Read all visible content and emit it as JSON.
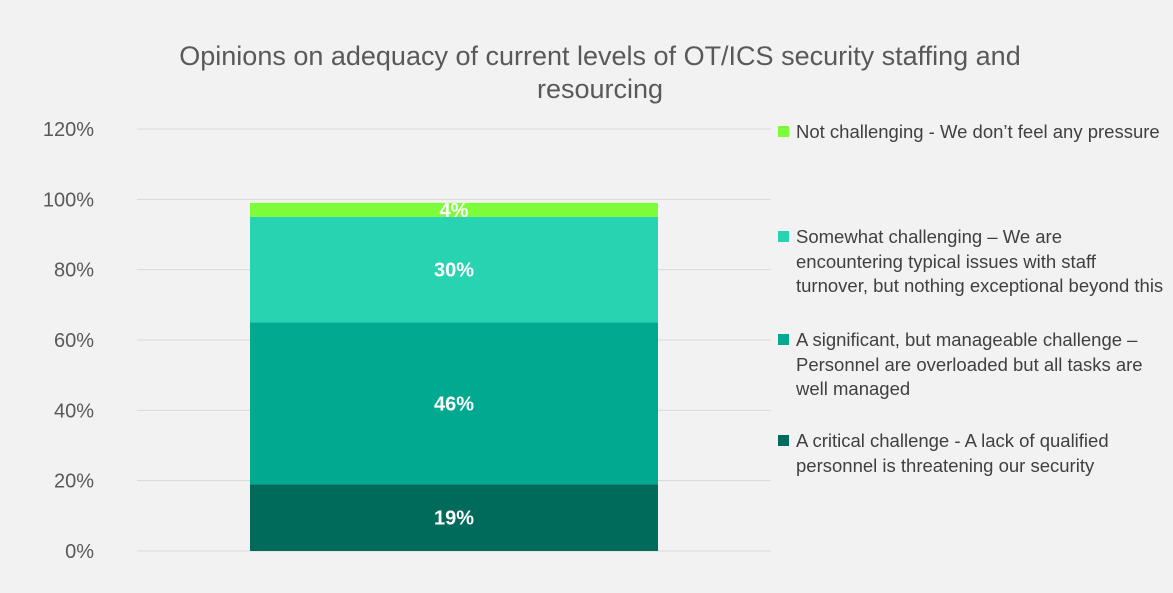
{
  "chart_data": {
    "type": "bar",
    "stacked": true,
    "title": "Opinions on adequacy of current levels of OT/ICS security staffing and resourcing",
    "categories": [
      ""
    ],
    "xlabel": "",
    "ylabel": "",
    "ylim": [
      0,
      120
    ],
    "yticks": [
      "0%",
      "20%",
      "40%",
      "60%",
      "80%",
      "100%",
      "120%"
    ],
    "grid": true,
    "legend_position": "right",
    "series": [
      {
        "name": "A critical challenge - A lack of qualified personnel is threatening our security",
        "values": [
          19
        ],
        "label": "19%",
        "color": "#006b5b"
      },
      {
        "name": "A significant, but manageable challenge – Personnel are overloaded but all tasks are well managed",
        "values": [
          46
        ],
        "label": "46%",
        "color": "#00a98f"
      },
      {
        "name": "Somewhat challenging  – We are encountering typical issues with staff turnover, but nothing exceptional beyond this",
        "values": [
          30
        ],
        "label": "30%",
        "color": "#27d3b0"
      },
      {
        "name": "Not challenging  - We don’t feel any pressure",
        "values": [
          4
        ],
        "label": "4%",
        "color": "#7dfc3a"
      }
    ]
  }
}
